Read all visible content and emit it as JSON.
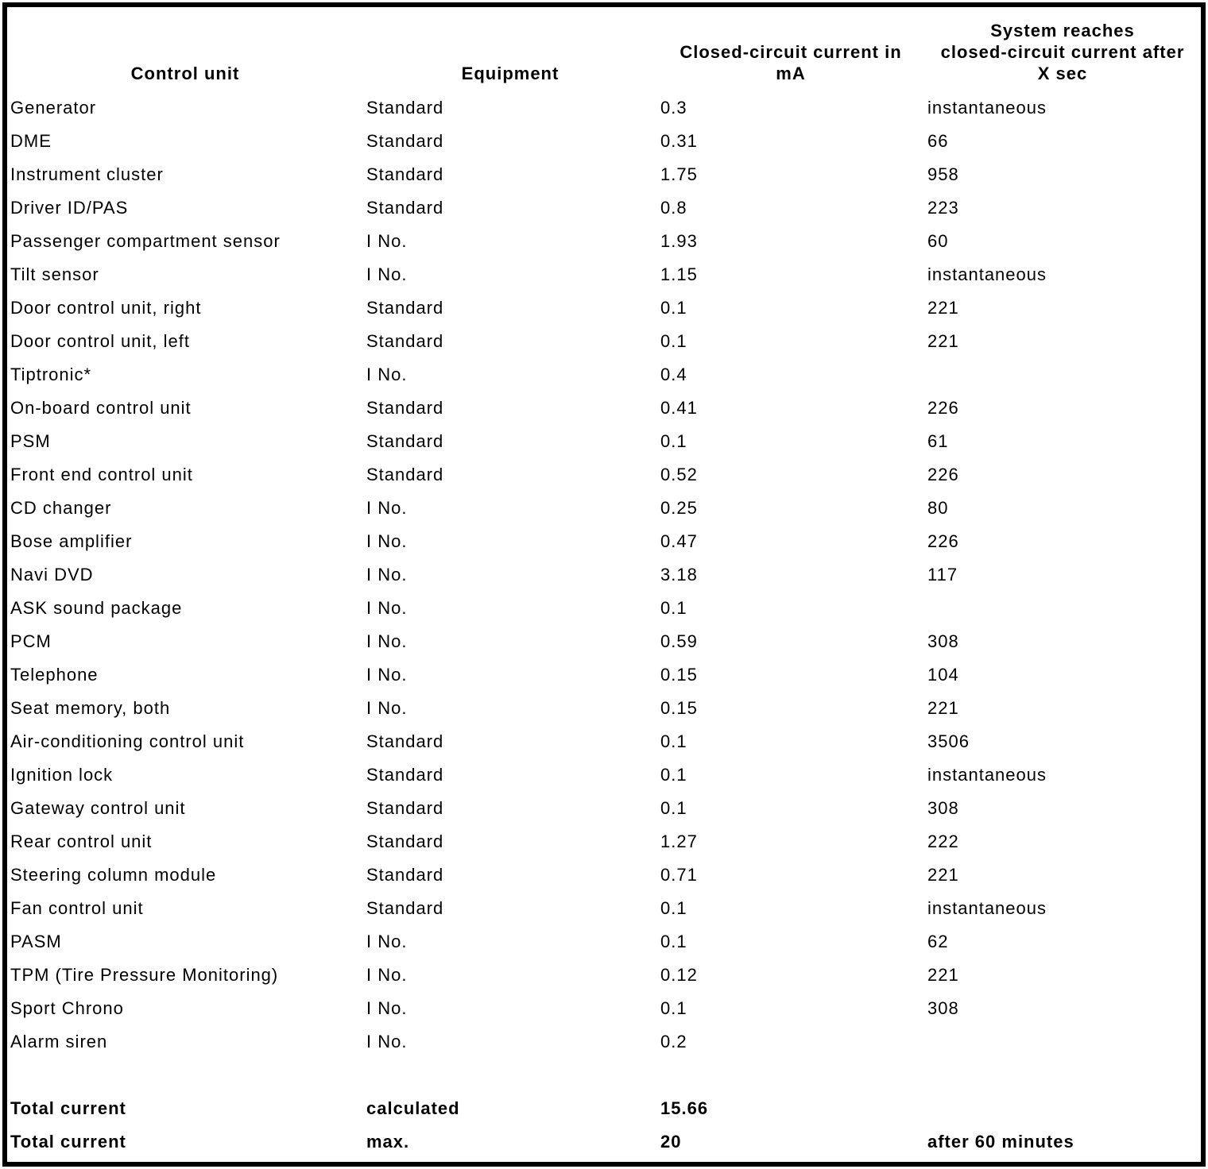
{
  "table": {
    "headers": {
      "control_unit": "Control unit",
      "equipment": "Equipment",
      "current": "Closed-circuit current in\nmA",
      "reaches": "System reaches\nclosed-circuit current after\nX sec"
    },
    "rows": [
      {
        "control_unit": "Generator",
        "equipment": "Standard",
        "current": "0.3",
        "reaches": "instantaneous"
      },
      {
        "control_unit": "DME",
        "equipment": "Standard",
        "current": "0.31",
        "reaches": "66"
      },
      {
        "control_unit": "Instrument cluster",
        "equipment": "Standard",
        "current": "1.75",
        "reaches": "958"
      },
      {
        "control_unit": "Driver ID/PAS",
        "equipment": "Standard",
        "current": "0.8",
        "reaches": "223"
      },
      {
        "control_unit": "Passenger compartment sensor",
        "equipment": "I No.",
        "current": "1.93",
        "reaches": "60"
      },
      {
        "control_unit": "Tilt sensor",
        "equipment": "I No.",
        "current": "1.15",
        "reaches": "instantaneous"
      },
      {
        "control_unit": "Door control unit, right",
        "equipment": "Standard",
        "current": "0.1",
        "reaches": "221"
      },
      {
        "control_unit": "Door control unit, left",
        "equipment": "Standard",
        "current": "0.1",
        "reaches": "221"
      },
      {
        "control_unit": "Tiptronic*",
        "equipment": "I No.",
        "current": "0.4",
        "reaches": ""
      },
      {
        "control_unit": "On-board control unit",
        "equipment": "Standard",
        "current": "0.41",
        "reaches": "226"
      },
      {
        "control_unit": "PSM",
        "equipment": "Standard",
        "current": "0.1",
        "reaches": "61"
      },
      {
        "control_unit": "Front end control unit",
        "equipment": "Standard",
        "current": "0.52",
        "reaches": "226"
      },
      {
        "control_unit": "CD changer",
        "equipment": "I No.",
        "current": "0.25",
        "reaches": "80"
      },
      {
        "control_unit": "Bose amplifier",
        "equipment": "I No.",
        "current": "0.47",
        "reaches": "226"
      },
      {
        "control_unit": "Navi DVD",
        "equipment": "I No.",
        "current": "3.18",
        "reaches": "117"
      },
      {
        "control_unit": "ASK sound package",
        "equipment": "I No.",
        "current": "0.1",
        "reaches": ""
      },
      {
        "control_unit": "PCM",
        "equipment": "I No.",
        "current": "0.59",
        "reaches": "308"
      },
      {
        "control_unit": "Telephone",
        "equipment": "I No.",
        "current": "0.15",
        "reaches": "104"
      },
      {
        "control_unit": "Seat memory, both",
        "equipment": "I No.",
        "current": "0.15",
        "reaches": "221"
      },
      {
        "control_unit": "Air-conditioning control unit",
        "equipment": "Standard",
        "current": "0.1",
        "reaches": "3506"
      },
      {
        "control_unit": "Ignition lock",
        "equipment": "Standard",
        "current": "0.1",
        "reaches": "instantaneous"
      },
      {
        "control_unit": "Gateway control unit",
        "equipment": "Standard",
        "current": "0.1",
        "reaches": "308"
      },
      {
        "control_unit": "Rear control unit",
        "equipment": "Standard",
        "current": "1.27",
        "reaches": "222"
      },
      {
        "control_unit": "Steering column module",
        "equipment": "Standard",
        "current": "0.71",
        "reaches": "221"
      },
      {
        "control_unit": "Fan control unit",
        "equipment": "Standard",
        "current": "0.1",
        "reaches": "instantaneous"
      },
      {
        "control_unit": "PASM",
        "equipment": "I No.",
        "current": "0.1",
        "reaches": "62"
      },
      {
        "control_unit": "TPM (Tire Pressure Monitoring)",
        "equipment": "I No.",
        "current": "0.12",
        "reaches": "221"
      },
      {
        "control_unit": "Sport Chrono",
        "equipment": "I No.",
        "current": "0.1",
        "reaches": "308"
      },
      {
        "control_unit": "Alarm siren",
        "equipment": "I No.",
        "current": "0.2",
        "reaches": ""
      }
    ],
    "totals": [
      {
        "control_unit": "Total current",
        "equipment": "calculated",
        "current": "15.66",
        "reaches": ""
      },
      {
        "control_unit": "Total current",
        "equipment": "max.",
        "current": "20",
        "reaches": "after 60 minutes"
      }
    ]
  },
  "colors": {
    "text": "#000000",
    "background": "#ffffff",
    "border": "#000000"
  }
}
